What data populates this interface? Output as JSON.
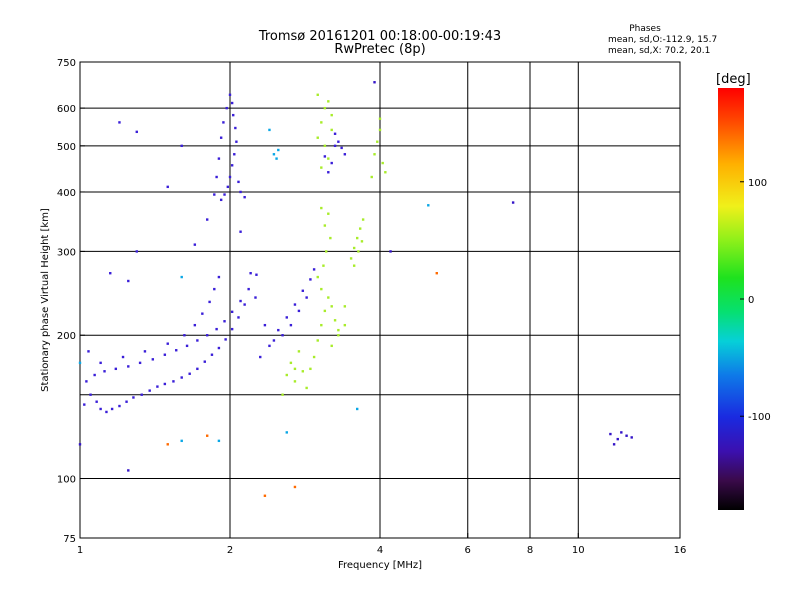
{
  "chart_data": {
    "type": "scatter",
    "title": "Tromsø 20161201 00:18:00-00:19:43",
    "subtitle": "RwPretec (8p)",
    "stats": {
      "heading": "Phases",
      "line1": "mean, sd,O:-112.9, 15.7",
      "line2": "mean, sd,X:  70.2, 20.1"
    },
    "xlabel": "Frequency [MHz]",
    "ylabel": "Stationary phase Virtual Height [km]",
    "x_scale": "log",
    "y_scale": "log",
    "xlim": [
      1,
      16
    ],
    "ylim": [
      75,
      750
    ],
    "x_ticks": [
      1,
      2,
      4,
      6,
      8,
      10,
      16
    ],
    "x_gridlines": [
      2,
      4,
      6,
      8,
      10
    ],
    "y_ticks": [
      75,
      100,
      200,
      300,
      400,
      500,
      600,
      750
    ],
    "y_gridlines": [
      100,
      150,
      200,
      300,
      400,
      500,
      600
    ],
    "grid": true,
    "colorbar": {
      "label": "[deg]",
      "min": -180,
      "max": 180,
      "ticks": [
        100,
        0,
        -100
      ]
    },
    "series": [
      {
        "mode": "O",
        "phase_deg": -113,
        "color": "#3a1fd8",
        "points": [
          [
            1.02,
            143
          ],
          [
            1.05,
            150
          ],
          [
            1.08,
            145
          ],
          [
            1.1,
            140
          ],
          [
            1.13,
            138
          ],
          [
            1.16,
            140
          ],
          [
            1.2,
            142
          ],
          [
            1.24,
            145
          ],
          [
            1.28,
            148
          ],
          [
            1.33,
            150
          ],
          [
            1.38,
            153
          ],
          [
            1.43,
            156
          ],
          [
            1.48,
            158
          ],
          [
            1.54,
            160
          ],
          [
            1.6,
            163
          ],
          [
            1.66,
            166
          ],
          [
            1.72,
            170
          ],
          [
            1.78,
            176
          ],
          [
            1.84,
            182
          ],
          [
            1.9,
            188
          ],
          [
            1.96,
            196
          ],
          [
            2.02,
            206
          ],
          [
            2.08,
            218
          ],
          [
            2.14,
            232
          ],
          [
            1.03,
            160
          ],
          [
            1.07,
            165
          ],
          [
            1.12,
            168
          ],
          [
            1.18,
            170
          ],
          [
            1.25,
            172
          ],
          [
            1.32,
            175
          ],
          [
            1.4,
            178
          ],
          [
            1.48,
            182
          ],
          [
            1.56,
            186
          ],
          [
            1.64,
            190
          ],
          [
            1.72,
            195
          ],
          [
            1.8,
            200
          ],
          [
            1.88,
            206
          ],
          [
            1.95,
            214
          ],
          [
            2.02,
            224
          ],
          [
            2.1,
            236
          ],
          [
            2.18,
            250
          ],
          [
            2.26,
            268
          ],
          [
            1.04,
            185
          ],
          [
            1.1,
            175
          ],
          [
            1.22,
            180
          ],
          [
            1.35,
            185
          ],
          [
            1.5,
            192
          ],
          [
            1.62,
            200
          ],
          [
            1.7,
            210
          ],
          [
            1.76,
            222
          ],
          [
            1.82,
            235
          ],
          [
            1.86,
            250
          ],
          [
            1.9,
            265
          ],
          [
            1.92,
            385
          ],
          [
            1.95,
            395
          ],
          [
            1.98,
            410
          ],
          [
            2.0,
            430
          ],
          [
            2.02,
            455
          ],
          [
            2.04,
            480
          ],
          [
            2.06,
            510
          ],
          [
            2.05,
            545
          ],
          [
            2.03,
            580
          ],
          [
            2.02,
            615
          ],
          [
            2.0,
            640
          ],
          [
            1.97,
            600
          ],
          [
            1.94,
            560
          ],
          [
            1.92,
            520
          ],
          [
            1.9,
            470
          ],
          [
            1.88,
            430
          ],
          [
            1.86,
            395
          ],
          [
            2.1,
            400
          ],
          [
            2.14,
            390
          ],
          [
            2.08,
            420
          ],
          [
            2.3,
            180
          ],
          [
            2.4,
            190
          ],
          [
            2.5,
            205
          ],
          [
            2.6,
            218
          ],
          [
            2.7,
            232
          ],
          [
            2.8,
            248
          ],
          [
            2.9,
            262
          ],
          [
            2.95,
            275
          ],
          [
            2.85,
            240
          ],
          [
            2.75,
            225
          ],
          [
            2.65,
            210
          ],
          [
            2.55,
            200
          ],
          [
            2.45,
            195
          ],
          [
            2.35,
            210
          ],
          [
            2.25,
            240
          ],
          [
            2.2,
            270
          ],
          [
            3.3,
            510
          ],
          [
            3.35,
            495
          ],
          [
            3.4,
            480
          ],
          [
            3.25,
            530
          ],
          [
            3.2,
            460
          ],
          [
            3.15,
            440
          ],
          [
            3.1,
            475
          ],
          [
            3.25,
            500
          ],
          [
            1.2,
            560
          ],
          [
            1.5,
            410
          ],
          [
            1.3,
            300
          ],
          [
            1.7,
            310
          ],
          [
            2.1,
            330
          ],
          [
            1.8,
            350
          ],
          [
            1.3,
            535
          ],
          [
            1.6,
            500
          ],
          [
            1.25,
            260
          ],
          [
            1.15,
            270
          ]
        ]
      },
      {
        "mode": "X",
        "phase_deg": 70,
        "color": "#a8ec2a",
        "points": [
          [
            2.9,
            170
          ],
          [
            2.95,
            180
          ],
          [
            3.0,
            195
          ],
          [
            3.05,
            210
          ],
          [
            3.1,
            225
          ],
          [
            3.15,
            240
          ],
          [
            3.2,
            230
          ],
          [
            3.25,
            215
          ],
          [
            3.3,
            205
          ],
          [
            3.05,
            250
          ],
          [
            3.0,
            265
          ],
          [
            3.08,
            280
          ],
          [
            3.12,
            300
          ],
          [
            3.18,
            320
          ],
          [
            3.1,
            340
          ],
          [
            3.15,
            360
          ],
          [
            3.05,
            370
          ],
          [
            2.6,
            165
          ],
          [
            2.7,
            160
          ],
          [
            2.8,
            168
          ],
          [
            2.65,
            175
          ],
          [
            2.75,
            185
          ],
          [
            3.2,
            190
          ],
          [
            3.3,
            200
          ],
          [
            3.4,
            210
          ],
          [
            3.0,
            520
          ],
          [
            3.05,
            560
          ],
          [
            3.1,
            600
          ],
          [
            3.0,
            640
          ],
          [
            3.15,
            620
          ],
          [
            3.2,
            580
          ],
          [
            3.1,
            500
          ],
          [
            3.15,
            470
          ],
          [
            3.05,
            450
          ],
          [
            3.2,
            540
          ],
          [
            3.5,
            290
          ],
          [
            3.55,
            305
          ],
          [
            3.6,
            320
          ],
          [
            3.65,
            335
          ],
          [
            3.7,
            350
          ],
          [
            3.55,
            280
          ],
          [
            3.62,
            300
          ],
          [
            3.68,
            315
          ],
          [
            3.9,
            480
          ],
          [
            3.95,
            510
          ],
          [
            4.0,
            540
          ],
          [
            4.05,
            460
          ],
          [
            4.1,
            440
          ],
          [
            3.85,
            430
          ],
          [
            4.0,
            570
          ],
          [
            2.55,
            150
          ],
          [
            2.85,
            155
          ],
          [
            3.4,
            230
          ],
          [
            2.7,
            170
          ]
        ]
      },
      {
        "mode": "other",
        "phase_deg": -60,
        "color": "#0aa7e6",
        "points": [
          [
            2.45,
            480
          ],
          [
            2.48,
            470
          ],
          [
            2.5,
            490
          ],
          [
            2.4,
            540
          ],
          [
            1.6,
            265
          ],
          [
            1.0,
            175
          ],
          [
            3.6,
            140
          ],
          [
            5.0,
            375
          ],
          [
            2.6,
            125
          ],
          [
            1.6,
            120
          ],
          [
            1.9,
            120
          ]
        ]
      },
      {
        "mode": "F-high",
        "phase_deg": -110,
        "color": "#3414c8",
        "points": [
          [
            11.6,
            124
          ],
          [
            12.0,
            121
          ],
          [
            11.8,
            118
          ],
          [
            12.2,
            125
          ],
          [
            12.8,
            122
          ],
          [
            12.5,
            123
          ],
          [
            7.4,
            380
          ],
          [
            4.2,
            300
          ],
          [
            3.9,
            680
          ],
          [
            1.0,
            118
          ],
          [
            1.25,
            104
          ]
        ]
      },
      {
        "mode": "sparse",
        "phase_deg": 150,
        "color": "#ff6a00",
        "points": [
          [
            2.7,
            96
          ],
          [
            2.35,
            92
          ],
          [
            5.2,
            270
          ],
          [
            1.5,
            118
          ],
          [
            1.8,
            123
          ]
        ]
      }
    ]
  }
}
